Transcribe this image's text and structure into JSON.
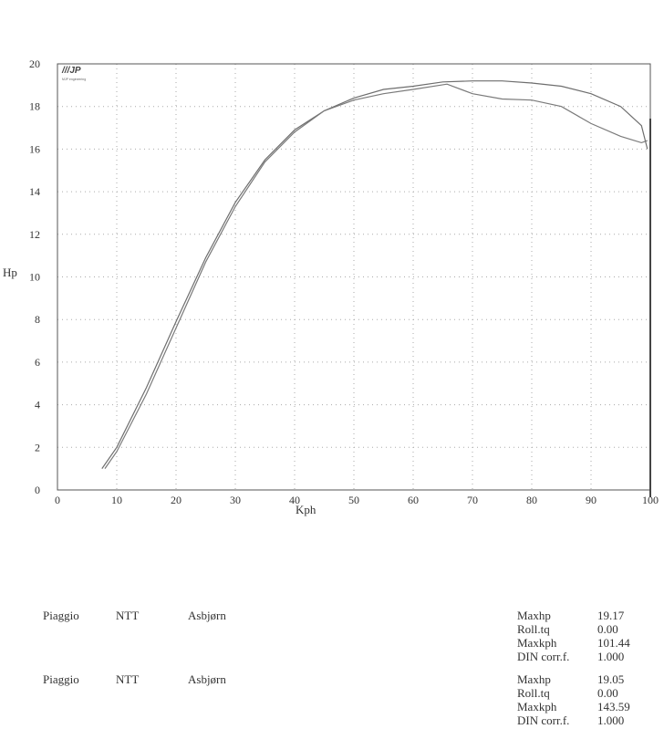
{
  "chart_data": {
    "type": "line",
    "xlabel": "Kph",
    "ylabel": "Hp",
    "xlim": [
      0,
      100
    ],
    "ylim": [
      0,
      20
    ],
    "xticks": [
      0,
      10,
      20,
      30,
      40,
      50,
      60,
      70,
      80,
      90,
      100
    ],
    "yticks": [
      0,
      2,
      4,
      6,
      8,
      10,
      12,
      14,
      16,
      18,
      20
    ],
    "grid": true,
    "logo_text": "MJP engineering",
    "series": [
      {
        "x": [
          7.5,
          10,
          15,
          20,
          25,
          30,
          35,
          40,
          45,
          50,
          55,
          60,
          65,
          70,
          75,
          80,
          85,
          90,
          95,
          98.5,
          99.5
        ],
        "y": [
          1.0,
          2.0,
          4.8,
          7.9,
          10.9,
          13.5,
          15.5,
          16.9,
          17.8,
          18.4,
          18.8,
          18.95,
          19.15,
          19.2,
          19.2,
          19.1,
          18.95,
          18.6,
          18.0,
          17.1,
          16.0
        ],
        "color": "#6e6e6e"
      },
      {
        "x": [
          8,
          10,
          15,
          20,
          25,
          30,
          35,
          40,
          45,
          50,
          55,
          60,
          65.7,
          70,
          75,
          80,
          85,
          90,
          95,
          98.5,
          99.5
        ],
        "y": [
          1.0,
          1.8,
          4.5,
          7.6,
          10.7,
          13.3,
          15.4,
          16.8,
          17.8,
          18.3,
          18.6,
          18.8,
          19.05,
          18.6,
          18.35,
          18.3,
          18.0,
          17.2,
          16.6,
          16.3,
          16.4
        ],
        "color": "#7a7a7a"
      }
    ]
  },
  "runs": [
    {
      "make": "Piaggio",
      "model": "NTT",
      "owner": "Asbjørn",
      "stats": [
        {
          "label": "Maxhp",
          "value": "19.17"
        },
        {
          "label": "Roll.tq",
          "value": "0.00"
        },
        {
          "label": "Maxkph",
          "value": "101.44"
        },
        {
          "label": "DIN corr.f.",
          "value": "1.000"
        }
      ]
    },
    {
      "make": "Piaggio",
      "model": "NTT",
      "owner": "Asbjørn",
      "stats": [
        {
          "label": "Maxhp",
          "value": "19.05"
        },
        {
          "label": "Roll.tq",
          "value": "0.00"
        },
        {
          "label": "Maxkph",
          "value": "143.59"
        },
        {
          "label": "DIN corr.f.",
          "value": "1.000"
        }
      ]
    }
  ]
}
